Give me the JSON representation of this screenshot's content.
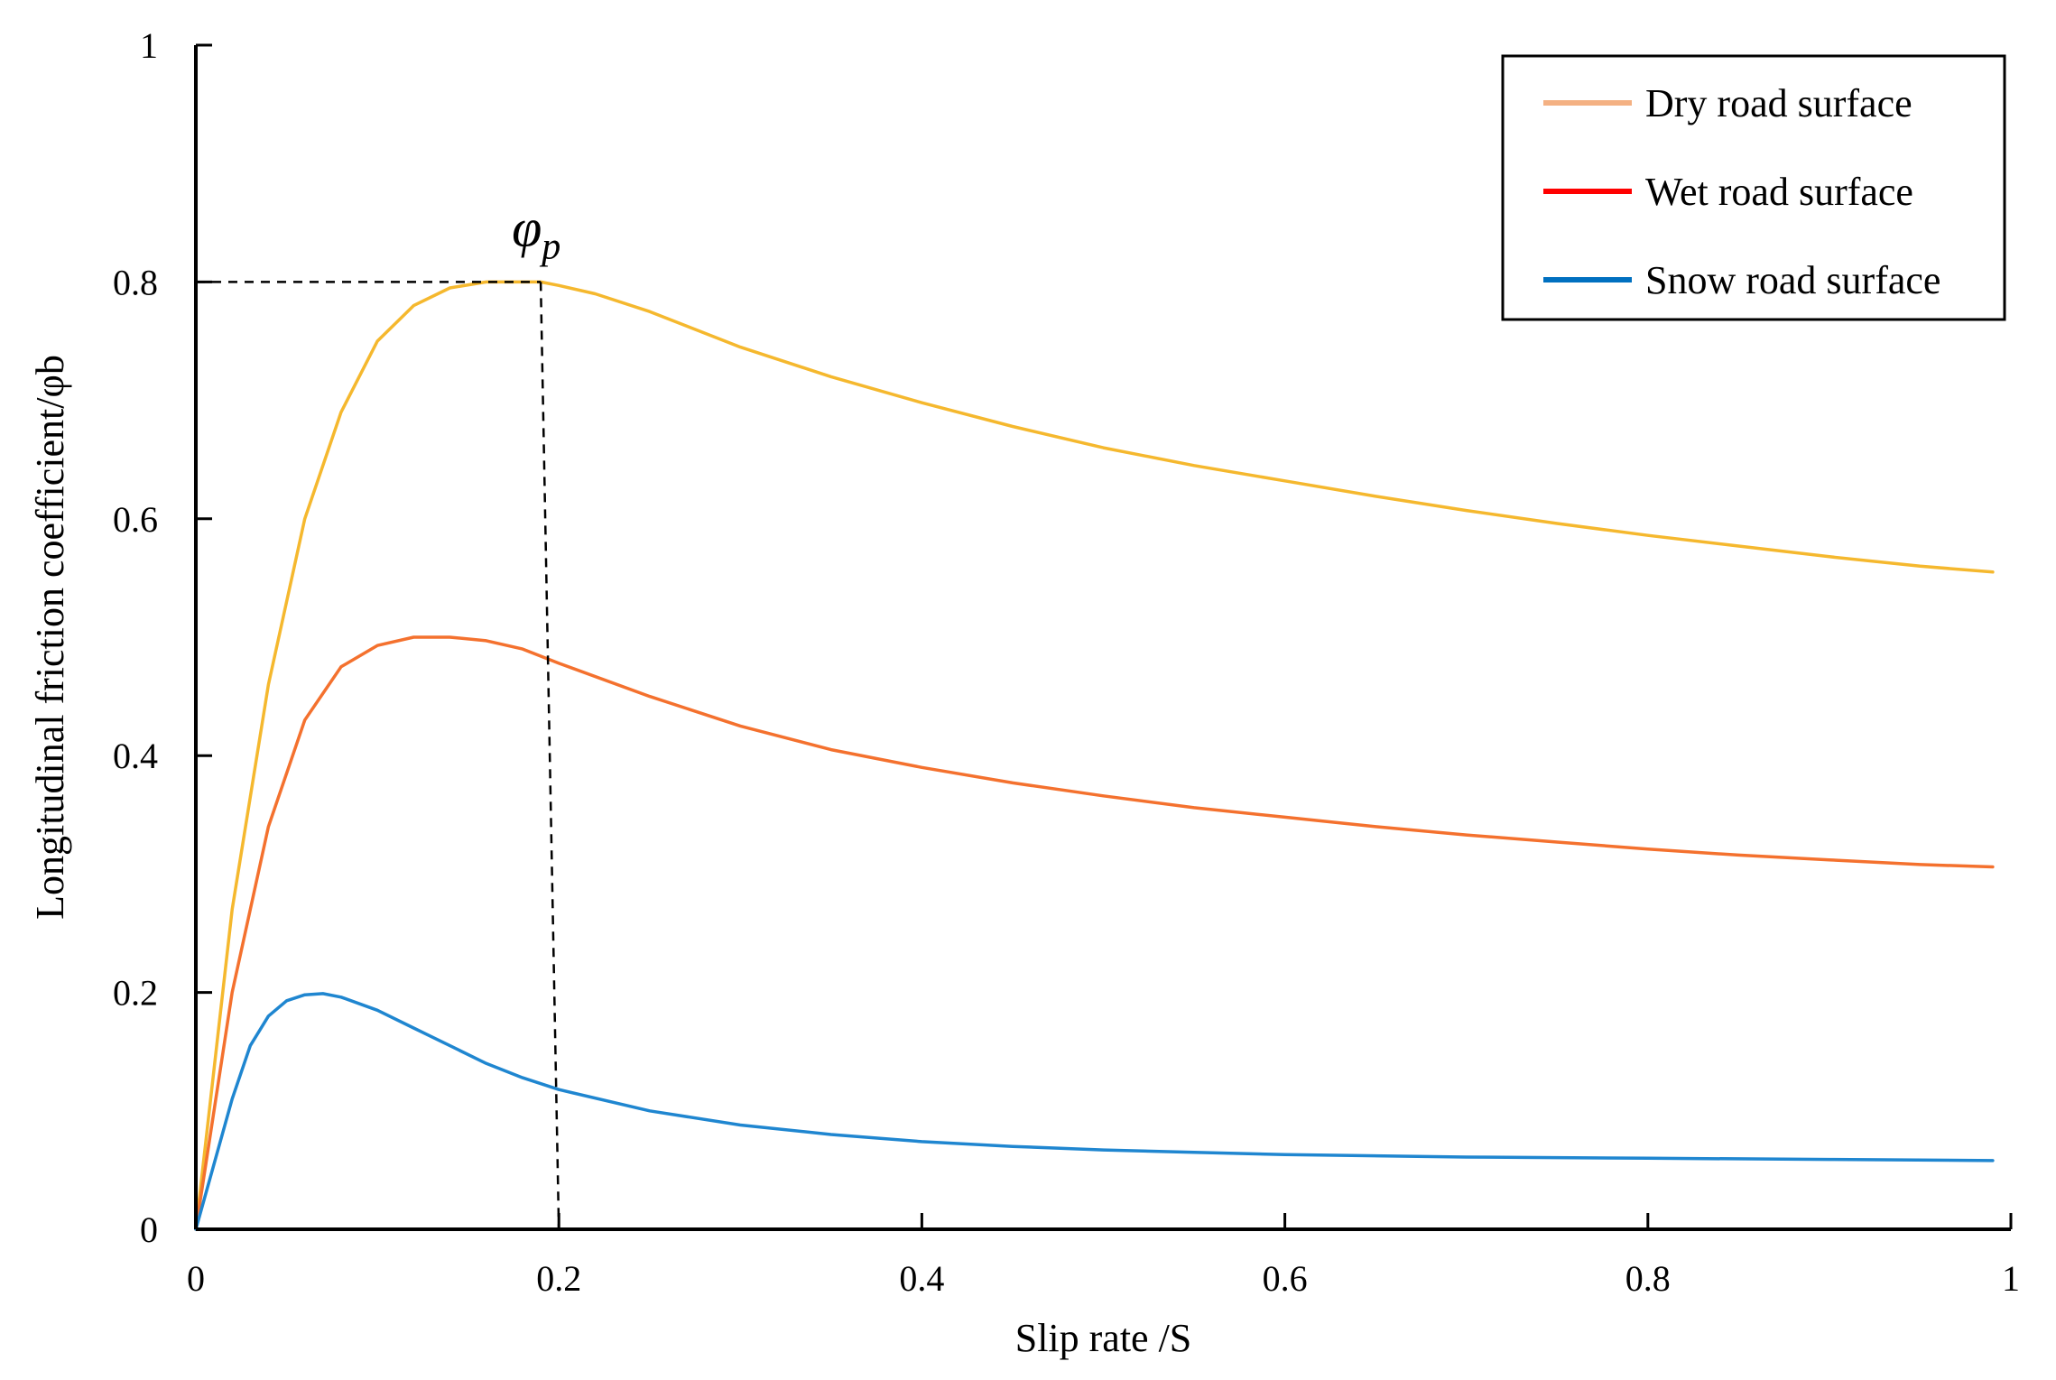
{
  "chart_data": {
    "type": "line",
    "xlabel": "Slip rate /S",
    "ylabel": "Longitudinal friction coefficient/φb",
    "xlim": [
      0,
      1
    ],
    "ylim": [
      0,
      1
    ],
    "x_ticks": [
      "0",
      "0.2",
      "0.4",
      "0.6",
      "0.8",
      "1"
    ],
    "y_ticks": [
      "0",
      "0.2",
      "0.4",
      "0.6",
      "0.8",
      "1"
    ],
    "grid": false,
    "legend_position": "top-right",
    "series": [
      {
        "name": "Dry road surface",
        "color": "#F5B82E",
        "legend_color": "#F4B183",
        "x": [
          0,
          0.02,
          0.04,
          0.06,
          0.08,
          0.1,
          0.12,
          0.14,
          0.16,
          0.18,
          0.19,
          0.2,
          0.22,
          0.25,
          0.3,
          0.35,
          0.4,
          0.45,
          0.5,
          0.55,
          0.6,
          0.65,
          0.7,
          0.75,
          0.8,
          0.85,
          0.9,
          0.95,
          0.99
        ],
        "y": [
          0,
          0.27,
          0.46,
          0.6,
          0.69,
          0.75,
          0.78,
          0.795,
          0.8,
          0.8,
          0.8,
          0.797,
          0.79,
          0.775,
          0.745,
          0.72,
          0.698,
          0.678,
          0.66,
          0.645,
          0.632,
          0.619,
          0.607,
          0.596,
          0.586,
          0.577,
          0.568,
          0.56,
          0.555
        ]
      },
      {
        "name": "Wet road surface",
        "color": "#F4712E",
        "legend_color": "#FF0000",
        "x": [
          0,
          0.02,
          0.04,
          0.06,
          0.08,
          0.1,
          0.12,
          0.14,
          0.16,
          0.18,
          0.2,
          0.25,
          0.3,
          0.35,
          0.4,
          0.45,
          0.5,
          0.55,
          0.6,
          0.65,
          0.7,
          0.75,
          0.8,
          0.85,
          0.9,
          0.95,
          0.99
        ],
        "y": [
          0,
          0.2,
          0.34,
          0.43,
          0.475,
          0.493,
          0.5,
          0.5,
          0.497,
          0.49,
          0.478,
          0.45,
          0.425,
          0.405,
          0.39,
          0.377,
          0.366,
          0.356,
          0.348,
          0.34,
          0.333,
          0.327,
          0.321,
          0.316,
          0.312,
          0.308,
          0.306
        ]
      },
      {
        "name": "Snow road surface",
        "color": "#1F86D0",
        "legend_color": "#0070C0",
        "x": [
          0,
          0.02,
          0.03,
          0.04,
          0.05,
          0.06,
          0.07,
          0.08,
          0.1,
          0.12,
          0.14,
          0.16,
          0.18,
          0.2,
          0.25,
          0.3,
          0.35,
          0.4,
          0.45,
          0.5,
          0.55,
          0.6,
          0.7,
          0.8,
          0.9,
          0.99
        ],
        "y": [
          0,
          0.11,
          0.155,
          0.18,
          0.193,
          0.198,
          0.199,
          0.196,
          0.185,
          0.17,
          0.155,
          0.14,
          0.128,
          0.118,
          0.1,
          0.088,
          0.08,
          0.074,
          0.07,
          0.067,
          0.065,
          0.063,
          0.061,
          0.06,
          0.059,
          0.058
        ]
      }
    ],
    "annotation": {
      "label": "φ",
      "subscript": "p",
      "peak_x": 0.19,
      "peak_y": 0.8,
      "vertical_line_x_bottom": 0.2
    }
  }
}
